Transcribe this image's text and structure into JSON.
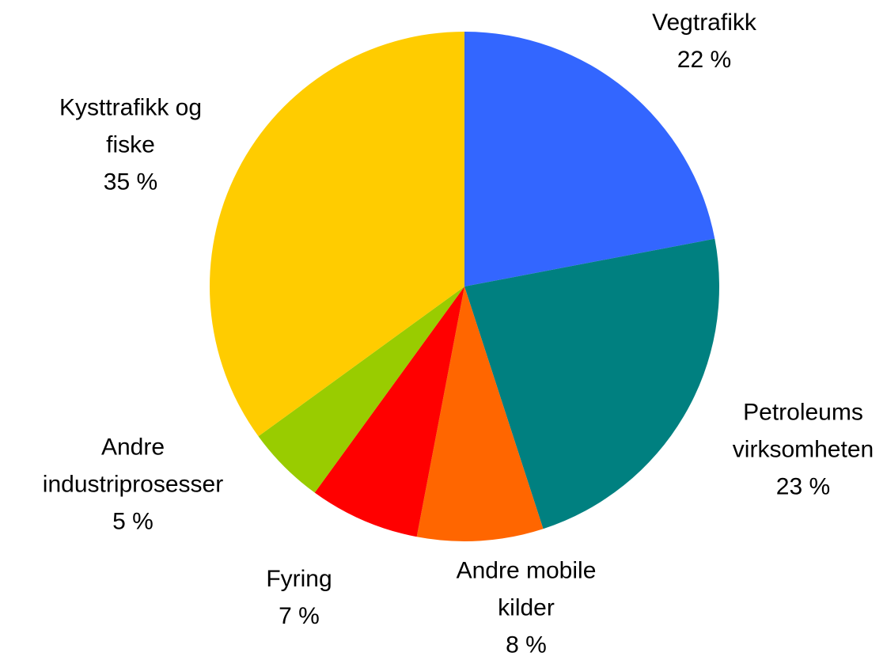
{
  "chart_data": {
    "type": "pie",
    "categories": [
      "Vegtrafikk",
      "Petroleums\nvirksomheten",
      "Andre mobile\nkilder",
      "Fyring",
      "Andre\nindustriprosesser",
      "Kysttrafikk og\nfiske"
    ],
    "values": [
      22,
      23,
      8,
      7,
      5,
      35
    ],
    "value_labels": [
      "22 %",
      "23 %",
      "8 %",
      "7 %",
      "5 %",
      "35 %"
    ],
    "colors": [
      "#3366ff",
      "#008080",
      "#ff6600",
      "#ff0000",
      "#99cc00",
      "#ffcc00"
    ]
  }
}
